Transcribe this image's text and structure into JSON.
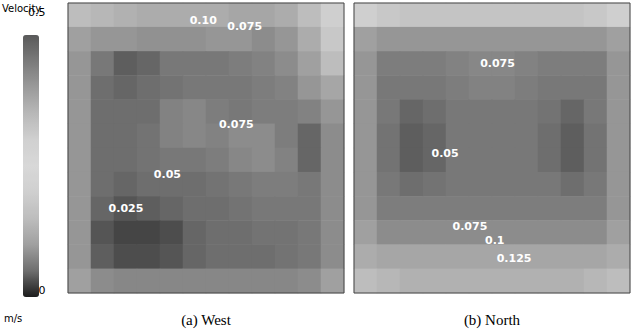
{
  "chart_data": {
    "type": "heatmap",
    "tick_labels": false,
    "colorbar": {
      "title": "Velocity",
      "unit": "m/s",
      "range": [
        0,
        0.5
      ],
      "ticks": [
        {
          "value": 0,
          "label": "0.0"
        },
        0.5
      ]
    },
    "panels": [
      {
        "title": "(a) West",
        "cells": [
          [
            0.15,
            0.14,
            0.13,
            0.12,
            0.12,
            0.12,
            0.12,
            0.11,
            0.11,
            0.12,
            0.15,
            0.2
          ],
          [
            0.1,
            0.09,
            0.09,
            0.085,
            0.085,
            0.085,
            0.09,
            0.09,
            0.08,
            0.09,
            0.12,
            0.18
          ],
          [
            0.09,
            0.06,
            0.04,
            0.045,
            0.06,
            0.06,
            0.06,
            0.065,
            0.07,
            0.08,
            0.1,
            0.15
          ],
          [
            0.09,
            0.05,
            0.045,
            0.05,
            0.055,
            0.06,
            0.06,
            0.06,
            0.065,
            0.07,
            0.09,
            0.11
          ],
          [
            0.09,
            0.05,
            0.05,
            0.05,
            0.07,
            0.075,
            0.065,
            0.06,
            0.065,
            0.065,
            0.07,
            0.09
          ],
          [
            0.09,
            0.05,
            0.05,
            0.055,
            0.07,
            0.075,
            0.07,
            0.08,
            0.08,
            0.065,
            0.045,
            0.08
          ],
          [
            0.09,
            0.05,
            0.05,
            0.055,
            0.06,
            0.06,
            0.065,
            0.075,
            0.08,
            0.07,
            0.045,
            0.08
          ],
          [
            0.09,
            0.05,
            0.045,
            0.05,
            0.05,
            0.05,
            0.055,
            0.06,
            0.065,
            0.065,
            0.06,
            0.08
          ],
          [
            0.09,
            0.045,
            0.035,
            0.04,
            0.045,
            0.05,
            0.05,
            0.055,
            0.06,
            0.06,
            0.06,
            0.08
          ],
          [
            0.09,
            0.035,
            0.025,
            0.025,
            0.03,
            0.045,
            0.05,
            0.05,
            0.055,
            0.055,
            0.06,
            0.08
          ],
          [
            0.09,
            0.04,
            0.03,
            0.03,
            0.035,
            0.045,
            0.05,
            0.05,
            0.05,
            0.055,
            0.06,
            0.08
          ],
          [
            0.1,
            0.08,
            0.075,
            0.075,
            0.075,
            0.075,
            0.075,
            0.075,
            0.075,
            0.075,
            0.08,
            0.1
          ]
        ],
        "annotations": [
          "0.10",
          "0.075",
          "0.075",
          "0.05",
          "0.025"
        ]
      },
      {
        "title": "(b) North",
        "cells": [
          [
            0.2,
            0.18,
            0.17,
            0.17,
            0.17,
            0.17,
            0.17,
            0.17,
            0.17,
            0.17,
            0.18,
            0.2
          ],
          [
            0.1,
            0.09,
            0.09,
            0.09,
            0.09,
            0.09,
            0.09,
            0.09,
            0.09,
            0.09,
            0.09,
            0.1
          ],
          [
            0.09,
            0.065,
            0.065,
            0.065,
            0.07,
            0.075,
            0.075,
            0.07,
            0.065,
            0.065,
            0.065,
            0.09
          ],
          [
            0.09,
            0.06,
            0.06,
            0.06,
            0.065,
            0.07,
            0.07,
            0.065,
            0.06,
            0.06,
            0.06,
            0.09
          ],
          [
            0.09,
            0.06,
            0.045,
            0.05,
            0.06,
            0.06,
            0.06,
            0.06,
            0.055,
            0.045,
            0.06,
            0.09
          ],
          [
            0.09,
            0.055,
            0.04,
            0.045,
            0.06,
            0.06,
            0.06,
            0.06,
            0.05,
            0.04,
            0.055,
            0.09
          ],
          [
            0.09,
            0.055,
            0.04,
            0.045,
            0.06,
            0.06,
            0.06,
            0.06,
            0.05,
            0.04,
            0.055,
            0.09
          ],
          [
            0.09,
            0.06,
            0.05,
            0.055,
            0.06,
            0.06,
            0.06,
            0.06,
            0.06,
            0.05,
            0.06,
            0.09
          ],
          [
            0.09,
            0.065,
            0.065,
            0.065,
            0.065,
            0.065,
            0.065,
            0.065,
            0.065,
            0.065,
            0.065,
            0.09
          ],
          [
            0.1,
            0.08,
            0.08,
            0.08,
            0.08,
            0.08,
            0.08,
            0.08,
            0.08,
            0.08,
            0.08,
            0.1
          ],
          [
            0.12,
            0.11,
            0.11,
            0.11,
            0.11,
            0.11,
            0.11,
            0.11,
            0.11,
            0.11,
            0.11,
            0.12
          ],
          [
            0.15,
            0.14,
            0.13,
            0.13,
            0.13,
            0.13,
            0.13,
            0.13,
            0.13,
            0.13,
            0.14,
            0.15
          ]
        ],
        "annotations": [
          "0.075",
          "0.05",
          "0.075",
          "0.1",
          "0.125"
        ]
      }
    ]
  }
}
